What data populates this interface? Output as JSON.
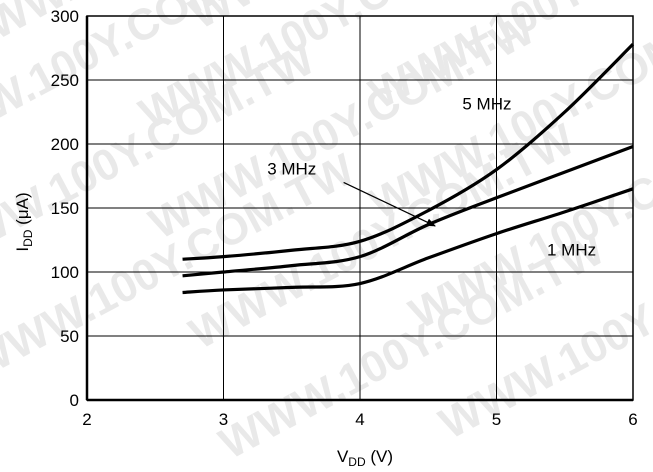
{
  "watermark": "WWW.100Y.COM.TW",
  "chart_data": {
    "type": "line",
    "title": "",
    "xlabel": {
      "main": "V",
      "sub": "DD",
      "tail": " (V)"
    },
    "ylabel": {
      "main": "I",
      "sub": "DD",
      "tail": " (μA)"
    },
    "xlim": [
      2,
      6
    ],
    "ylim": [
      0,
      300
    ],
    "xticks": [
      2,
      3,
      4,
      5,
      6
    ],
    "yticks": [
      0,
      50,
      100,
      150,
      200,
      250,
      300
    ],
    "grid": true,
    "series": [
      {
        "name": "5 MHz",
        "color": "#000000",
        "x": [
          2.7,
          3.0,
          3.5,
          4.0,
          4.5,
          5.0,
          5.5,
          6.0
        ],
        "y": [
          110,
          112,
          117,
          124,
          148,
          180,
          225,
          278
        ]
      },
      {
        "name": "3 MHz",
        "color": "#000000",
        "x": [
          2.7,
          3.0,
          3.5,
          4.0,
          4.5,
          5.0,
          5.5,
          6.0
        ],
        "y": [
          97,
          100,
          105,
          112,
          137,
          158,
          178,
          198
        ]
      },
      {
        "name": "1 MHz",
        "color": "#000000",
        "x": [
          2.7,
          3.0,
          3.5,
          4.0,
          4.5,
          5.0,
          5.5,
          6.0
        ],
        "y": [
          84,
          86,
          88,
          91,
          111,
          130,
          147,
          165
        ]
      }
    ],
    "annotations": [
      {
        "text": "5 MHz",
        "x": 4.75,
        "y": 227,
        "anchor": "start"
      },
      {
        "text": "3 MHz",
        "x": 3.5,
        "y": 176,
        "anchor": "middle",
        "arrow": {
          "from": [
            3.88,
            170
          ],
          "to": [
            4.55,
            136
          ]
        }
      },
      {
        "text": "1 MHz",
        "x": 5.55,
        "y": 113,
        "anchor": "middle"
      }
    ]
  }
}
